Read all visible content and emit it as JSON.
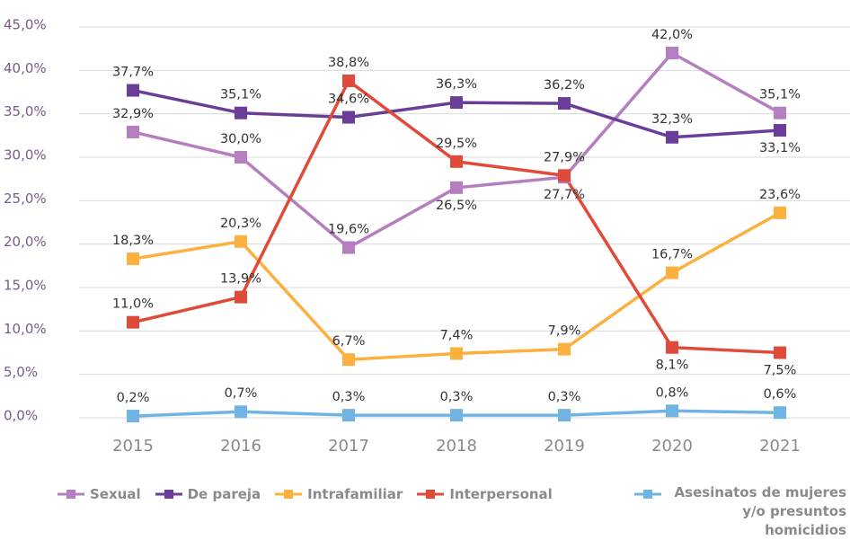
{
  "chart_data": {
    "type": "line",
    "categories": [
      "2015",
      "2016",
      "2017",
      "2018",
      "2019",
      "2020",
      "2021"
    ],
    "ylim": [
      0,
      45
    ],
    "yticks": [
      {
        "value": 0,
        "label": "0,0%"
      },
      {
        "value": 5,
        "label": "5,0%"
      },
      {
        "value": 10,
        "label": "10,0%"
      },
      {
        "value": 15,
        "label": "15,0%"
      },
      {
        "value": 20,
        "label": "20,0%"
      },
      {
        "value": 25,
        "label": "25,0%"
      },
      {
        "value": 30,
        "label": "30,0%"
      },
      {
        "value": 35,
        "label": "35,0%"
      },
      {
        "value": 40,
        "label": "40,0%"
      },
      {
        "value": 45,
        "label": "45,0%"
      }
    ],
    "grid": true,
    "legend": "bottom",
    "series": [
      {
        "name": "Sexual",
        "color": "#b57fbf",
        "values": [
          32.9,
          30.0,
          19.6,
          26.5,
          27.7,
          42.0,
          35.1
        ],
        "value_labels": [
          "32,9%",
          "30,0%",
          "19,6%",
          "26,5%",
          "27,7%",
          "42,0%",
          "35,1%"
        ]
      },
      {
        "name": "De pareja",
        "color": "#6a3d99",
        "values": [
          37.7,
          35.1,
          34.6,
          36.3,
          36.2,
          32.3,
          33.1
        ],
        "value_labels": [
          "37,7%",
          "35,1%",
          "34,6%",
          "36,3%",
          "36,2%",
          "32,3%",
          "33,1%"
        ]
      },
      {
        "name": "Intrafamiliar",
        "color": "#fbb03f",
        "values": [
          18.3,
          20.3,
          6.7,
          7.4,
          7.9,
          16.7,
          23.6
        ],
        "value_labels": [
          "18,3%",
          "20,3%",
          "6,7%",
          "7,4%",
          "7,9%",
          "16,7%",
          "23,6%"
        ]
      },
      {
        "name": "Interpersonal",
        "color": "#e04a38",
        "values": [
          11.0,
          13.9,
          38.8,
          29.5,
          27.9,
          8.1,
          7.5
        ],
        "value_labels": [
          "11,0%",
          "13,9%",
          "38,8%",
          "29,5%",
          "27,9%",
          "8,1%",
          "7,5%"
        ]
      },
      {
        "name": "Asesinatos de mujeres y/o presuntos homicidios",
        "color": "#6fb4e3",
        "values": [
          0.2,
          0.7,
          0.3,
          0.3,
          0.3,
          0.8,
          0.6
        ],
        "value_labels": [
          "0,2%",
          "0,7%",
          "0,3%",
          "0,3%",
          "0,3%",
          "0,8%",
          "0,6%"
        ]
      }
    ]
  }
}
